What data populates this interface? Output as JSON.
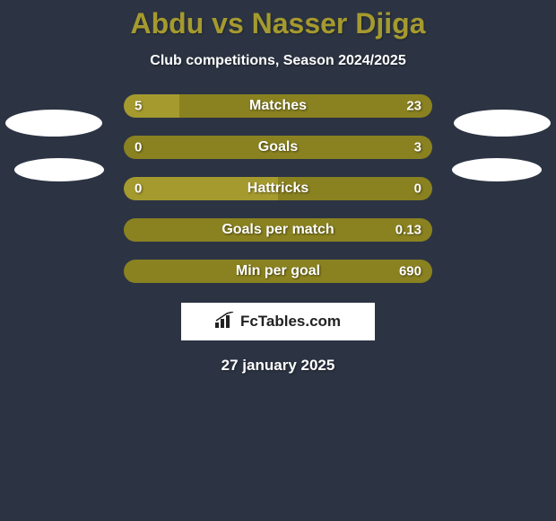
{
  "background_color": "#2c3443",
  "title": {
    "text": "Abdu vs Nasser Djiga",
    "color": "#a59a2e",
    "fontsize": 32
  },
  "subtitle": {
    "text": "Club competitions, Season 2024/2025",
    "color": "#ffffff",
    "fontsize": 16
  },
  "colors": {
    "left_bar": "#a59a2e",
    "right_bar": "#8a8220",
    "avatar": "#ffffff"
  },
  "stats": [
    {
      "label": "Matches",
      "left_val": "5",
      "right_val": "23",
      "left_pct": 17.9,
      "right_pct": 82.1
    },
    {
      "label": "Goals",
      "left_val": "0",
      "right_val": "3",
      "left_pct": 0.0,
      "right_pct": 100.0
    },
    {
      "label": "Hattricks",
      "left_val": "0",
      "right_val": "0",
      "left_pct": 50.0,
      "right_pct": 50.0
    },
    {
      "label": "Goals per match",
      "left_val": "",
      "right_val": "0.13",
      "left_pct": 0.0,
      "right_pct": 100.0
    },
    {
      "label": "Min per goal",
      "left_val": "",
      "right_val": "690",
      "left_pct": 0.0,
      "right_pct": 100.0
    }
  ],
  "brand": {
    "text": "FcTables.com"
  },
  "date": {
    "text": "27 january 2025"
  }
}
